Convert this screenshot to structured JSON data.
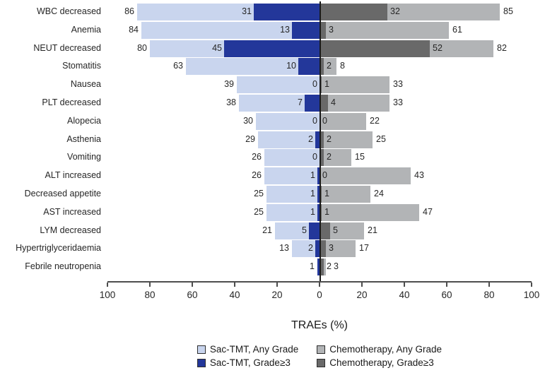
{
  "figure": {
    "axis_title": "TRAEs (%)"
  },
  "legend": {
    "items": [
      {
        "label": "Sac-TMT, Any Grade",
        "color": "#c9d5ee"
      },
      {
        "label": "Chemotherapy, Any Grade",
        "color": "#b2b4b6"
      },
      {
        "label": "Sac-TMT, Grade≥3",
        "color": "#23379a"
      },
      {
        "label": "Chemotherapy, Grade≥3",
        "color": "#696969"
      }
    ]
  },
  "chart_data": {
    "type": "bar",
    "orientation": "horizontal-diverging",
    "title": "",
    "xlabel": "TRAEs (%)",
    "ylabel": "",
    "x_tick_labels": [
      "100",
      "80",
      "60",
      "40",
      "20",
      "0",
      "20",
      "40",
      "60",
      "80",
      "100"
    ],
    "x_range_each_side": [
      0,
      100
    ],
    "left_group": "Sac-TMT",
    "right_group": "Chemotherapy",
    "grid": false,
    "legend_position": "bottom",
    "value_labels_shown": true,
    "categories": [
      "WBC decreased",
      "Anemia",
      "NEUT decreased",
      "Stomatitis",
      "Nausea",
      "PLT decreased",
      "Alopecia",
      "Asthenia",
      "Vomiting",
      "ALT increased",
      "Decreased appetite",
      "AST increased",
      "LYM decreased",
      "Hypertriglyceridaemia",
      "Febrile neutropenia"
    ],
    "series": [
      {
        "name": "Sac-TMT, Any Grade",
        "side": "left",
        "role": "any_grade",
        "color": "#c9d5ee",
        "values": [
          86,
          84,
          80,
          63,
          39,
          38,
          30,
          29,
          26,
          26,
          25,
          25,
          21,
          13,
          1
        ]
      },
      {
        "name": "Sac-TMT, Grade≥3",
        "side": "left",
        "role": "grade_ge3",
        "color": "#23379a",
        "values": [
          31,
          13,
          45,
          10,
          0,
          7,
          0,
          2,
          0,
          1,
          1,
          1,
          5,
          2,
          1
        ]
      },
      {
        "name": "Chemotherapy, Grade≥3",
        "side": "right",
        "role": "grade_ge3",
        "color": "#696969",
        "values": [
          32,
          3,
          52,
          2,
          1,
          4,
          0,
          2,
          2,
          0,
          1,
          1,
          5,
          3,
          2
        ]
      },
      {
        "name": "Chemotherapy, Any Grade",
        "side": "right",
        "role": "any_grade",
        "color": "#b2b4b6",
        "values": [
          85,
          61,
          82,
          8,
          33,
          33,
          22,
          25,
          15,
          43,
          24,
          47,
          21,
          17,
          3
        ]
      }
    ],
    "label_exceptions": {
      "Febrile neutropenia": "left side shows a single label '1' (Grade≥3 bar covers the Any Grade bar)"
    }
  }
}
